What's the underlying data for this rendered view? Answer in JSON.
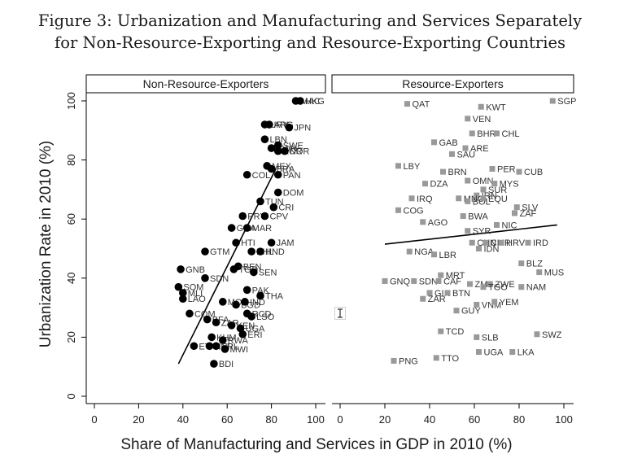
{
  "figure": {
    "title_line1": "Figure 3: Urbanization and Manufacturing and Services Separately",
    "title_line2": "for Non-Resource-Exporting and Resource-Exporting Countries"
  },
  "colors": {
    "non_resource_marker": "#000000",
    "resource_marker": "#999999",
    "fit_line": "#000000"
  },
  "chart_data": {
    "type": "scatter",
    "xlabel": "Share of Manufacturing and Services in GDP in 2010 (%)",
    "ylabel": "Urbanization Rate in 2010 (%)",
    "xlim": [
      -5,
      103
    ],
    "ylim": [
      -2,
      103
    ],
    "x_ticks": [
      0,
      20,
      40,
      60,
      80,
      100
    ],
    "y_ticks": [
      0,
      20,
      40,
      60,
      80,
      100
    ],
    "grid": false,
    "panels": [
      {
        "title": "Non-Resource-Exporters",
        "marker": "circle",
        "fit_line": {
          "x": [
            38,
            82
          ],
          "y": [
            11,
            77
          ]
        },
        "points": [
          {
            "label": "MAC",
            "x": 91,
            "y": 100
          },
          {
            "label": "HKG",
            "x": 93,
            "y": 100
          },
          {
            "label": "URY",
            "x": 77,
            "y": 92
          },
          {
            "label": "ARG",
            "x": 79,
            "y": 92
          },
          {
            "label": "JPN",
            "x": 88,
            "y": 91
          },
          {
            "label": "LBN",
            "x": 77,
            "y": 87
          },
          {
            "label": "BWN",
            "x": 80,
            "y": 84
          },
          {
            "label": "SWE",
            "x": 83,
            "y": 85
          },
          {
            "label": "KOR",
            "x": 83,
            "y": 83
          },
          {
            "label": "NOR",
            "x": 86,
            "y": 83
          },
          {
            "label": "MEX",
            "x": 78,
            "y": 78
          },
          {
            "label": "BRA",
            "x": 80,
            "y": 77
          },
          {
            "label": "COL",
            "x": 69,
            "y": 75
          },
          {
            "label": "PAN",
            "x": 83,
            "y": 75
          },
          {
            "label": "DOM",
            "x": 83,
            "y": 69
          },
          {
            "label": "TUN",
            "x": 75,
            "y": 66
          },
          {
            "label": "CRI",
            "x": 81,
            "y": 64
          },
          {
            "label": "PRY",
            "x": 67,
            "y": 61
          },
          {
            "label": "CPV",
            "x": 77,
            "y": 61
          },
          {
            "label": "GHA",
            "x": 62,
            "y": 57
          },
          {
            "label": "MAR",
            "x": 69,
            "y": 57
          },
          {
            "label": "HTI",
            "x": 64,
            "y": 52
          },
          {
            "label": "JAM",
            "x": 80,
            "y": 52
          },
          {
            "label": "PHL",
            "x": 71,
            "y": 49
          },
          {
            "label": "HND",
            "x": 75,
            "y": 49
          },
          {
            "label": "GTM",
            "x": 50,
            "y": 49
          },
          {
            "label": "BEN",
            "x": 65,
            "y": 44
          },
          {
            "label": "TGO",
            "x": 63,
            "y": 43
          },
          {
            "label": "SEN",
            "x": 72,
            "y": 42
          },
          {
            "label": "GNB",
            "x": 39,
            "y": 43
          },
          {
            "label": "SDN",
            "x": 50,
            "y": 40
          },
          {
            "label": "SOM",
            "x": 38,
            "y": 37
          },
          {
            "label": "MLI",
            "x": 40,
            "y": 35
          },
          {
            "label": "LAO",
            "x": 40,
            "y": 33
          },
          {
            "label": "PAK",
            "x": 69,
            "y": 36
          },
          {
            "label": "THA",
            "x": 75,
            "y": 34
          },
          {
            "label": "MOZ",
            "x": 58,
            "y": 32
          },
          {
            "label": "BGD",
            "x": 64,
            "y": 31
          },
          {
            "label": "IND",
            "x": 68,
            "y": 32
          },
          {
            "label": "COM",
            "x": 43,
            "y": 28
          },
          {
            "label": "BFA",
            "x": 51,
            "y": 26
          },
          {
            "label": "RCD",
            "x": 69,
            "y": 28
          },
          {
            "label": "LSO",
            "x": 71,
            "y": 27
          },
          {
            "label": "ZAR",
            "x": 55,
            "y": 25
          },
          {
            "label": "KEN",
            "x": 62,
            "y": 24
          },
          {
            "label": "UGA",
            "x": 66,
            "y": 23
          },
          {
            "label": "ERI",
            "x": 67,
            "y": 21
          },
          {
            "label": "KHM",
            "x": 53,
            "y": 20
          },
          {
            "label": "RWA",
            "x": 58,
            "y": 19
          },
          {
            "label": "ETH",
            "x": 45,
            "y": 17
          },
          {
            "label": "NER",
            "x": 52,
            "y": 17
          },
          {
            "label": "NPL",
            "x": 55,
            "y": 17
          },
          {
            "label": "MWI",
            "x": 59,
            "y": 16
          },
          {
            "label": "BDI",
            "x": 54,
            "y": 11
          }
        ]
      },
      {
        "title": "Resource-Exporters",
        "marker": "square",
        "fit_line": {
          "x": [
            20,
            97
          ],
          "y": [
            51.5,
            58
          ]
        },
        "points": [
          {
            "label": "SGP",
            "x": 95,
            "y": 100
          },
          {
            "label": "QAT",
            "x": 30,
            "y": 99
          },
          {
            "label": "KWT",
            "x": 63,
            "y": 98
          },
          {
            "label": "VEN",
            "x": 57,
            "y": 94
          },
          {
            "label": "BHR",
            "x": 59,
            "y": 89
          },
          {
            "label": "CHL",
            "x": 70,
            "y": 89
          },
          {
            "label": "GAB",
            "x": 42,
            "y": 86
          },
          {
            "label": "ARE",
            "x": 56,
            "y": 84
          },
          {
            "label": "SAU",
            "x": 50,
            "y": 82
          },
          {
            "label": "LBY",
            "x": 26,
            "y": 78
          },
          {
            "label": "BRN",
            "x": 46,
            "y": 76
          },
          {
            "label": "PER",
            "x": 68,
            "y": 77
          },
          {
            "label": "CUB",
            "x": 80,
            "y": 76
          },
          {
            "label": "OMN",
            "x": 57,
            "y": 73
          },
          {
            "label": "MYS",
            "x": 69,
            "y": 72
          },
          {
            "label": "DZA",
            "x": 38,
            "y": 72
          },
          {
            "label": "SUR",
            "x": 64,
            "y": 70
          },
          {
            "label": "IRN",
            "x": 61,
            "y": 68
          },
          {
            "label": "MNG",
            "x": 53,
            "y": 67
          },
          {
            "label": "BOL",
            "x": 57,
            "y": 66
          },
          {
            "label": "EQU",
            "x": 64,
            "y": 67
          },
          {
            "label": "IRQ",
            "x": 32,
            "y": 67
          },
          {
            "label": "SLV",
            "x": 79,
            "y": 64
          },
          {
            "label": "COG",
            "x": 26,
            "y": 63
          },
          {
            "label": "ZAF",
            "x": 78,
            "y": 62
          },
          {
            "label": "BWA",
            "x": 55,
            "y": 61
          },
          {
            "label": "AGO",
            "x": 37,
            "y": 59
          },
          {
            "label": "NIC",
            "x": 70,
            "y": 58
          },
          {
            "label": "SYR",
            "x": 57,
            "y": 56
          },
          {
            "label": "CHN",
            "x": 59,
            "y": 52
          },
          {
            "label": "CMR",
            "x": 65,
            "y": 52
          },
          {
            "label": "HRV",
            "x": 72,
            "y": 52
          },
          {
            "label": "IRD",
            "x": 84,
            "y": 52
          },
          {
            "label": "IDN",
            "x": 62,
            "y": 50
          },
          {
            "label": "NGA",
            "x": 31,
            "y": 49
          },
          {
            "label": "LBR",
            "x": 42,
            "y": 48
          },
          {
            "label": "BLZ",
            "x": 81,
            "y": 45
          },
          {
            "label": "MUS",
            "x": 89,
            "y": 42
          },
          {
            "label": "MRT",
            "x": 45,
            "y": 41
          },
          {
            "label": "GNQ",
            "x": 20,
            "y": 39
          },
          {
            "label": "SDN",
            "x": 33,
            "y": 39
          },
          {
            "label": "CAF",
            "x": 44,
            "y": 39
          },
          {
            "label": "ZMB",
            "x": 58,
            "y": 38
          },
          {
            "label": "ZWE",
            "x": 67,
            "y": 38
          },
          {
            "label": "TGO",
            "x": 64,
            "y": 37
          },
          {
            "label": "NAM",
            "x": 81,
            "y": 37
          },
          {
            "label": "GIN",
            "x": 40,
            "y": 35
          },
          {
            "label": "BTN",
            "x": 48,
            "y": 35
          },
          {
            "label": "ZAR",
            "x": 37,
            "y": 33
          },
          {
            "label": "VNM",
            "x": 61,
            "y": 31
          },
          {
            "label": "YEM",
            "x": 69,
            "y": 32
          },
          {
            "label": "GUY",
            "x": 52,
            "y": 29
          },
          {
            "label": "TCD",
            "x": 45,
            "y": 22
          },
          {
            "label": "SLB",
            "x": 61,
            "y": 20
          },
          {
            "label": "SWZ",
            "x": 88,
            "y": 21
          },
          {
            "label": "UGA",
            "x": 62,
            "y": 15
          },
          {
            "label": "LKA",
            "x": 77,
            "y": 15
          },
          {
            "label": "TTO",
            "x": 43,
            "y": 13
          },
          {
            "label": "PNG",
            "x": 24,
            "y": 12
          }
        ]
      }
    ]
  }
}
